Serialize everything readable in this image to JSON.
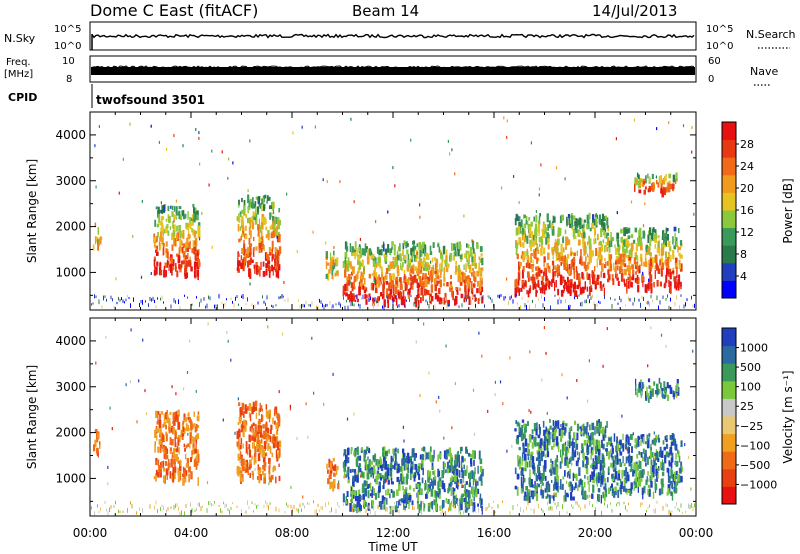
{
  "header": {
    "title": "Dome C East (fitACF)",
    "beam": "Beam 14",
    "date": "14/Jul/2013"
  },
  "strips": {
    "nsky_label": "N.Sky",
    "nsky_ticks": [
      "10^5",
      "10^0"
    ],
    "nsearch_label": "N.Search",
    "nsearch_ticks": [
      "10^5",
      "10^0"
    ],
    "freq_label": "Freq.",
    "freq_unit": "[MHz]",
    "freq_ticks": [
      "10",
      "8"
    ],
    "nave_label": "Nave",
    "nave_ticks": [
      "60",
      "0"
    ],
    "cpid_label": "CPID",
    "cpid_value": "twofsound 3501"
  },
  "chart_data": [
    {
      "type": "heatmap",
      "title": "",
      "ylabel": "Slant Range [km]",
      "ylim": [
        180,
        4500
      ],
      "y_ticks": [
        1000,
        2000,
        3000,
        4000
      ],
      "x_ticks": [
        "00:00",
        "04:00",
        "08:00",
        "12:00",
        "16:00",
        "20:00",
        "00:00"
      ],
      "xlim_hours": [
        0,
        24
      ],
      "colorbar": {
        "label": "Power [dB]",
        "ticks": [
          "28",
          "24",
          "20",
          "16",
          "12",
          "8",
          "4"
        ],
        "colors": [
          "#0000ff",
          "#1f3fbf",
          "#2a7a4a",
          "#3a9a5a",
          "#8cc83c",
          "#e6c31e",
          "#f09a1e",
          "#f06a18",
          "#e83a12",
          "#e81010"
        ]
      },
      "regions": [
        {
          "t": [
            0.1,
            0.4
          ],
          "r": [
            1600,
            2100
          ],
          "level": "mid"
        },
        {
          "t": [
            2.5,
            4.3
          ],
          "r": [
            1000,
            2500
          ],
          "level": "high"
        },
        {
          "t": [
            5.8,
            7.5
          ],
          "r": [
            1000,
            2700
          ],
          "level": "high"
        },
        {
          "t": [
            9.3,
            9.8
          ],
          "r": [
            900,
            1500
          ],
          "level": "mid"
        },
        {
          "t": [
            10.0,
            15.5
          ],
          "r": [
            400,
            1700
          ],
          "level": "high"
        },
        {
          "t": [
            16.8,
            20.5
          ],
          "r": [
            600,
            2300
          ],
          "level": "high"
        },
        {
          "t": [
            20.5,
            23.4
          ],
          "r": [
            700,
            2000
          ],
          "level": "high"
        },
        {
          "t": [
            21.5,
            23.3
          ],
          "r": [
            2800,
            3200
          ],
          "level": "high"
        }
      ]
    },
    {
      "type": "heatmap",
      "title": "",
      "ylabel": "Slant Range [km]",
      "ylim": [
        180,
        4500
      ],
      "y_ticks": [
        1000,
        2000,
        3000,
        4000
      ],
      "x_ticks": [
        "00:00",
        "04:00",
        "08:00",
        "12:00",
        "16:00",
        "20:00",
        "00:00"
      ],
      "xlabel": "Time UT",
      "xlim_hours": [
        0,
        24
      ],
      "colorbar": {
        "label": "Velocity [m s⁻¹]",
        "ticks": [
          "1000",
          "500",
          "100",
          "25",
          "−25",
          "−100",
          "−500",
          "−1000"
        ],
        "colors": [
          "#e81010",
          "#e8400f",
          "#f06a18",
          "#f0a020",
          "#e8c870",
          "#c8c8c8",
          "#7ac83c",
          "#3a9a5a",
          "#2a6aa0",
          "#1f3fbf"
        ]
      },
      "regions": [
        {
          "t": [
            0.1,
            0.4
          ],
          "r": [
            1600,
            2100
          ],
          "level": "neg"
        },
        {
          "t": [
            2.5,
            4.3
          ],
          "r": [
            1000,
            2500
          ],
          "level": "neg"
        },
        {
          "t": [
            5.8,
            7.5
          ],
          "r": [
            1000,
            2700
          ],
          "level": "neg"
        },
        {
          "t": [
            9.3,
            9.8
          ],
          "r": [
            900,
            1500
          ],
          "level": "neg"
        },
        {
          "t": [
            10.0,
            15.5
          ],
          "r": [
            400,
            1700
          ],
          "level": "pos"
        },
        {
          "t": [
            16.8,
            20.5
          ],
          "r": [
            600,
            2300
          ],
          "level": "pos"
        },
        {
          "t": [
            20.5,
            23.4
          ],
          "r": [
            700,
            2000
          ],
          "level": "pos"
        },
        {
          "t": [
            21.5,
            23.3
          ],
          "r": [
            2800,
            3200
          ],
          "level": "pos"
        }
      ]
    }
  ]
}
